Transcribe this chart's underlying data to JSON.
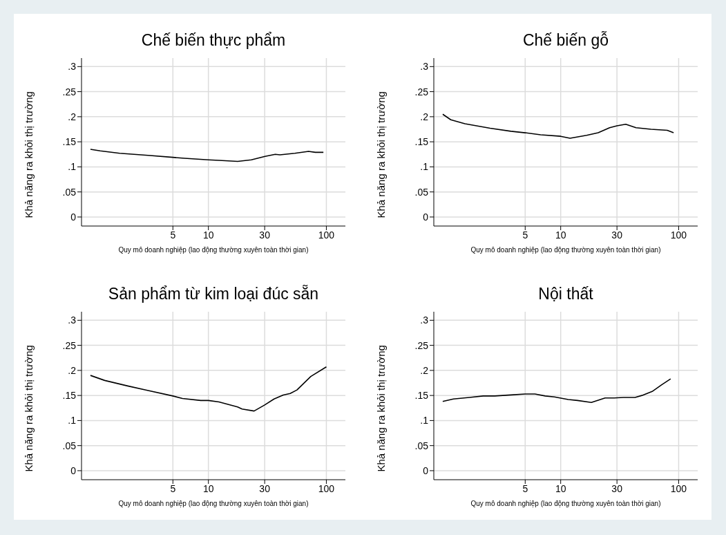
{
  "chart_data": [
    {
      "type": "line",
      "title": "Chế biến thực phẩm",
      "xlabel": "Quy mô doanh nghiệp (lao động thường xuyên toàn thời gian)",
      "ylabel": "Khả năng ra khỏi thị trường",
      "log": "x",
      "grid": true,
      "xlim": [
        0.84,
        145
      ],
      "xticks": [
        5,
        10,
        30,
        100
      ],
      "ylim": [
        -0.018,
        0.317
      ],
      "yticks": [
        {
          "value": 0,
          "label": "0"
        },
        {
          "value": 0.05,
          "label": ".05"
        },
        {
          "value": 0.1,
          "label": ".1"
        },
        {
          "value": 0.15,
          "label": ".15"
        },
        {
          "value": 0.2,
          "label": ".2"
        },
        {
          "value": 0.25,
          "label": ".25"
        },
        {
          "value": 0.3,
          "label": ".3"
        }
      ],
      "series": [
        {
          "color": "#000000",
          "x": [
            1,
            1.21,
            1.77,
            3.08,
            5,
            6.3,
            10,
            12.3,
            17.7,
            23.1,
            30.2,
            36.9,
            40.4,
            54,
            70.6,
            80.7,
            94.4
          ],
          "values": [
            0.135,
            0.132,
            0.127,
            0.123,
            0.119,
            0.117,
            0.114,
            0.113,
            0.111,
            0.114,
            0.121,
            0.125,
            0.124,
            0.127,
            0.131,
            0.129,
            0.129
          ]
        }
      ]
    },
    {
      "type": "line",
      "title": "Chế biến gỗ",
      "xlabel": "Quy mô doanh nghiệp (lao động thường xuyên toàn thời gian)",
      "ylabel": "Khả năng ra khỏi thị trường",
      "log": "x",
      "grid": true,
      "xlim": [
        0.84,
        145
      ],
      "xticks": [
        5,
        10,
        30,
        100
      ],
      "ylim": [
        -0.018,
        0.317
      ],
      "yticks": [
        {
          "value": 0,
          "label": "0"
        },
        {
          "value": 0.05,
          "label": ".05"
        },
        {
          "value": 0.1,
          "label": ".1"
        },
        {
          "value": 0.15,
          "label": ".15"
        },
        {
          "value": 0.2,
          "label": ".2"
        },
        {
          "value": 0.25,
          "label": ".25"
        },
        {
          "value": 0.3,
          "label": ".3"
        }
      ],
      "series": [
        {
          "color": "#000000",
          "x": [
            1,
            1.17,
            1.54,
            2.52,
            3.78,
            5,
            6.76,
            10,
            12,
            16.6,
            20.8,
            26,
            30,
            35.6,
            43.5,
            58.3,
            80,
            90.6
          ],
          "values": [
            0.205,
            0.194,
            0.186,
            0.177,
            0.171,
            0.168,
            0.164,
            0.161,
            0.157,
            0.163,
            0.168,
            0.178,
            0.182,
            0.185,
            0.178,
            0.175,
            0.173,
            0.168
          ]
        }
      ]
    },
    {
      "type": "line",
      "title": "Sản phẩm từ kim loại đúc sẵn",
      "xlabel": "Quy mô doanh nghiệp (lao động thường xuyên toàn thời gian)",
      "ylabel": "Khả năng ra khỏi thị trường",
      "log": "x",
      "grid": true,
      "xlim": [
        0.84,
        145
      ],
      "xticks": [
        5,
        10,
        30,
        100
      ],
      "ylim": [
        -0.018,
        0.317
      ],
      "yticks": [
        {
          "value": 0,
          "label": "0"
        },
        {
          "value": 0.05,
          "label": ".05"
        },
        {
          "value": 0.1,
          "label": ".1"
        },
        {
          "value": 0.15,
          "label": ".15"
        },
        {
          "value": 0.2,
          "label": ".2"
        },
        {
          "value": 0.25,
          "label": ".25"
        },
        {
          "value": 0.3,
          "label": ".3"
        }
      ],
      "series": [
        {
          "color": "#000000",
          "x": [
            1,
            1.32,
            2.07,
            2.95,
            5,
            6.03,
            8.6,
            10,
            12.3,
            17.7,
            19.3,
            24.4,
            30,
            36,
            43.1,
            49.4,
            56.4,
            73.8,
            100
          ],
          "values": [
            0.19,
            0.18,
            0.169,
            0.161,
            0.149,
            0.144,
            0.14,
            0.14,
            0.137,
            0.127,
            0.123,
            0.119,
            0.131,
            0.143,
            0.151,
            0.154,
            0.161,
            0.188,
            0.207
          ]
        }
      ]
    },
    {
      "type": "line",
      "title": "Nội thất",
      "xlabel": "Quy mô doanh nghiệp (lao động thường xuyên toàn thời gian)",
      "ylabel": "Khả năng ra khỏi thị trường",
      "log": "x",
      "grid": true,
      "xlim": [
        0.84,
        145
      ],
      "xticks": [
        5,
        10,
        30,
        100
      ],
      "ylim": [
        -0.018,
        0.317
      ],
      "yticks": [
        {
          "value": 0,
          "label": "0"
        },
        {
          "value": 0.05,
          "label": ".05"
        },
        {
          "value": 0.1,
          "label": ".1"
        },
        {
          "value": 0.15,
          "label": ".15"
        },
        {
          "value": 0.2,
          "label": ".2"
        },
        {
          "value": 0.25,
          "label": ".25"
        },
        {
          "value": 0.3,
          "label": ".3"
        }
      ],
      "series": [
        {
          "color": "#000000",
          "x": [
            1,
            1.23,
            1.68,
            2.2,
            2.76,
            3.78,
            5,
            6.05,
            7.4,
            8.85,
            11.6,
            13.9,
            18.2,
            23.8,
            28.4,
            34,
            42.7,
            48.8,
            59.7,
            71.5,
            85.5
          ],
          "values": [
            0.138,
            0.143,
            0.146,
            0.149,
            0.149,
            0.151,
            0.153,
            0.153,
            0.149,
            0.147,
            0.142,
            0.14,
            0.136,
            0.145,
            0.145,
            0.146,
            0.146,
            0.15,
            0.158,
            0.171,
            0.183
          ]
        }
      ]
    }
  ]
}
